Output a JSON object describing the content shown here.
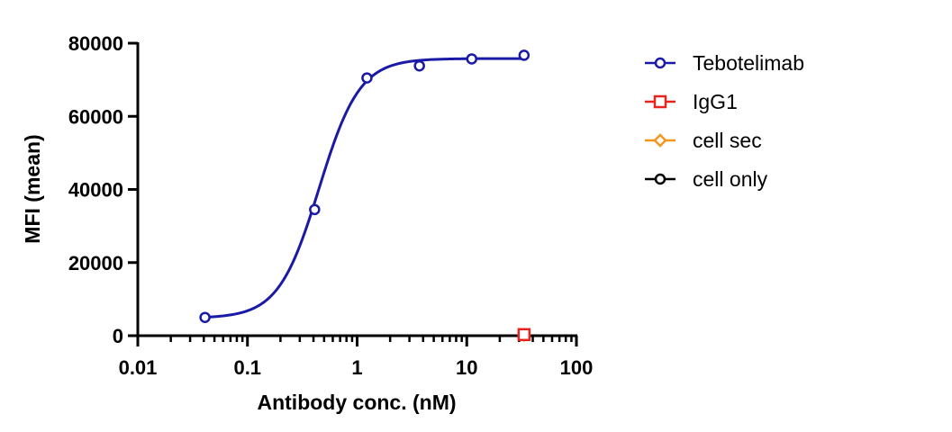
{
  "chart_data": {
    "type": "scatter",
    "x_scale": "log",
    "xlabel": "Antibody conc. (nM)",
    "ylabel": "MFI (mean)",
    "xlim": [
      0.01,
      100
    ],
    "ylim": [
      0,
      80000
    ],
    "x_ticks": [
      "0.01",
      "0.1",
      "1",
      "10",
      "100"
    ],
    "y_ticks": [
      "0",
      "20000",
      "40000",
      "60000",
      "80000"
    ],
    "grid": false,
    "legend_position": "right",
    "series": [
      {
        "name": "Tebotelimab",
        "color": "#1a1aa6",
        "marker": "circle",
        "fit_curve": "sigmoidal",
        "points": [
          {
            "x": 0.041,
            "y": 5000
          },
          {
            "x": 0.41,
            "y": 34500
          },
          {
            "x": 1.23,
            "y": 70500
          },
          {
            "x": 3.7,
            "y": 73800
          },
          {
            "x": 11.1,
            "y": 75700
          },
          {
            "x": 33.3,
            "y": 76700
          }
        ]
      },
      {
        "name": "IgG1",
        "color": "#e8231e",
        "marker": "square",
        "points": [
          {
            "x": 33.3,
            "y": 300
          }
        ]
      },
      {
        "name": "cell sec",
        "color": "#f5951e",
        "marker": "diamond",
        "points": [
          {
            "x": 33.3,
            "y": 150
          }
        ]
      },
      {
        "name": "cell only",
        "color": "#000000",
        "marker": "circle",
        "points": [
          {
            "x": 33.3,
            "y": 100
          }
        ]
      }
    ]
  }
}
